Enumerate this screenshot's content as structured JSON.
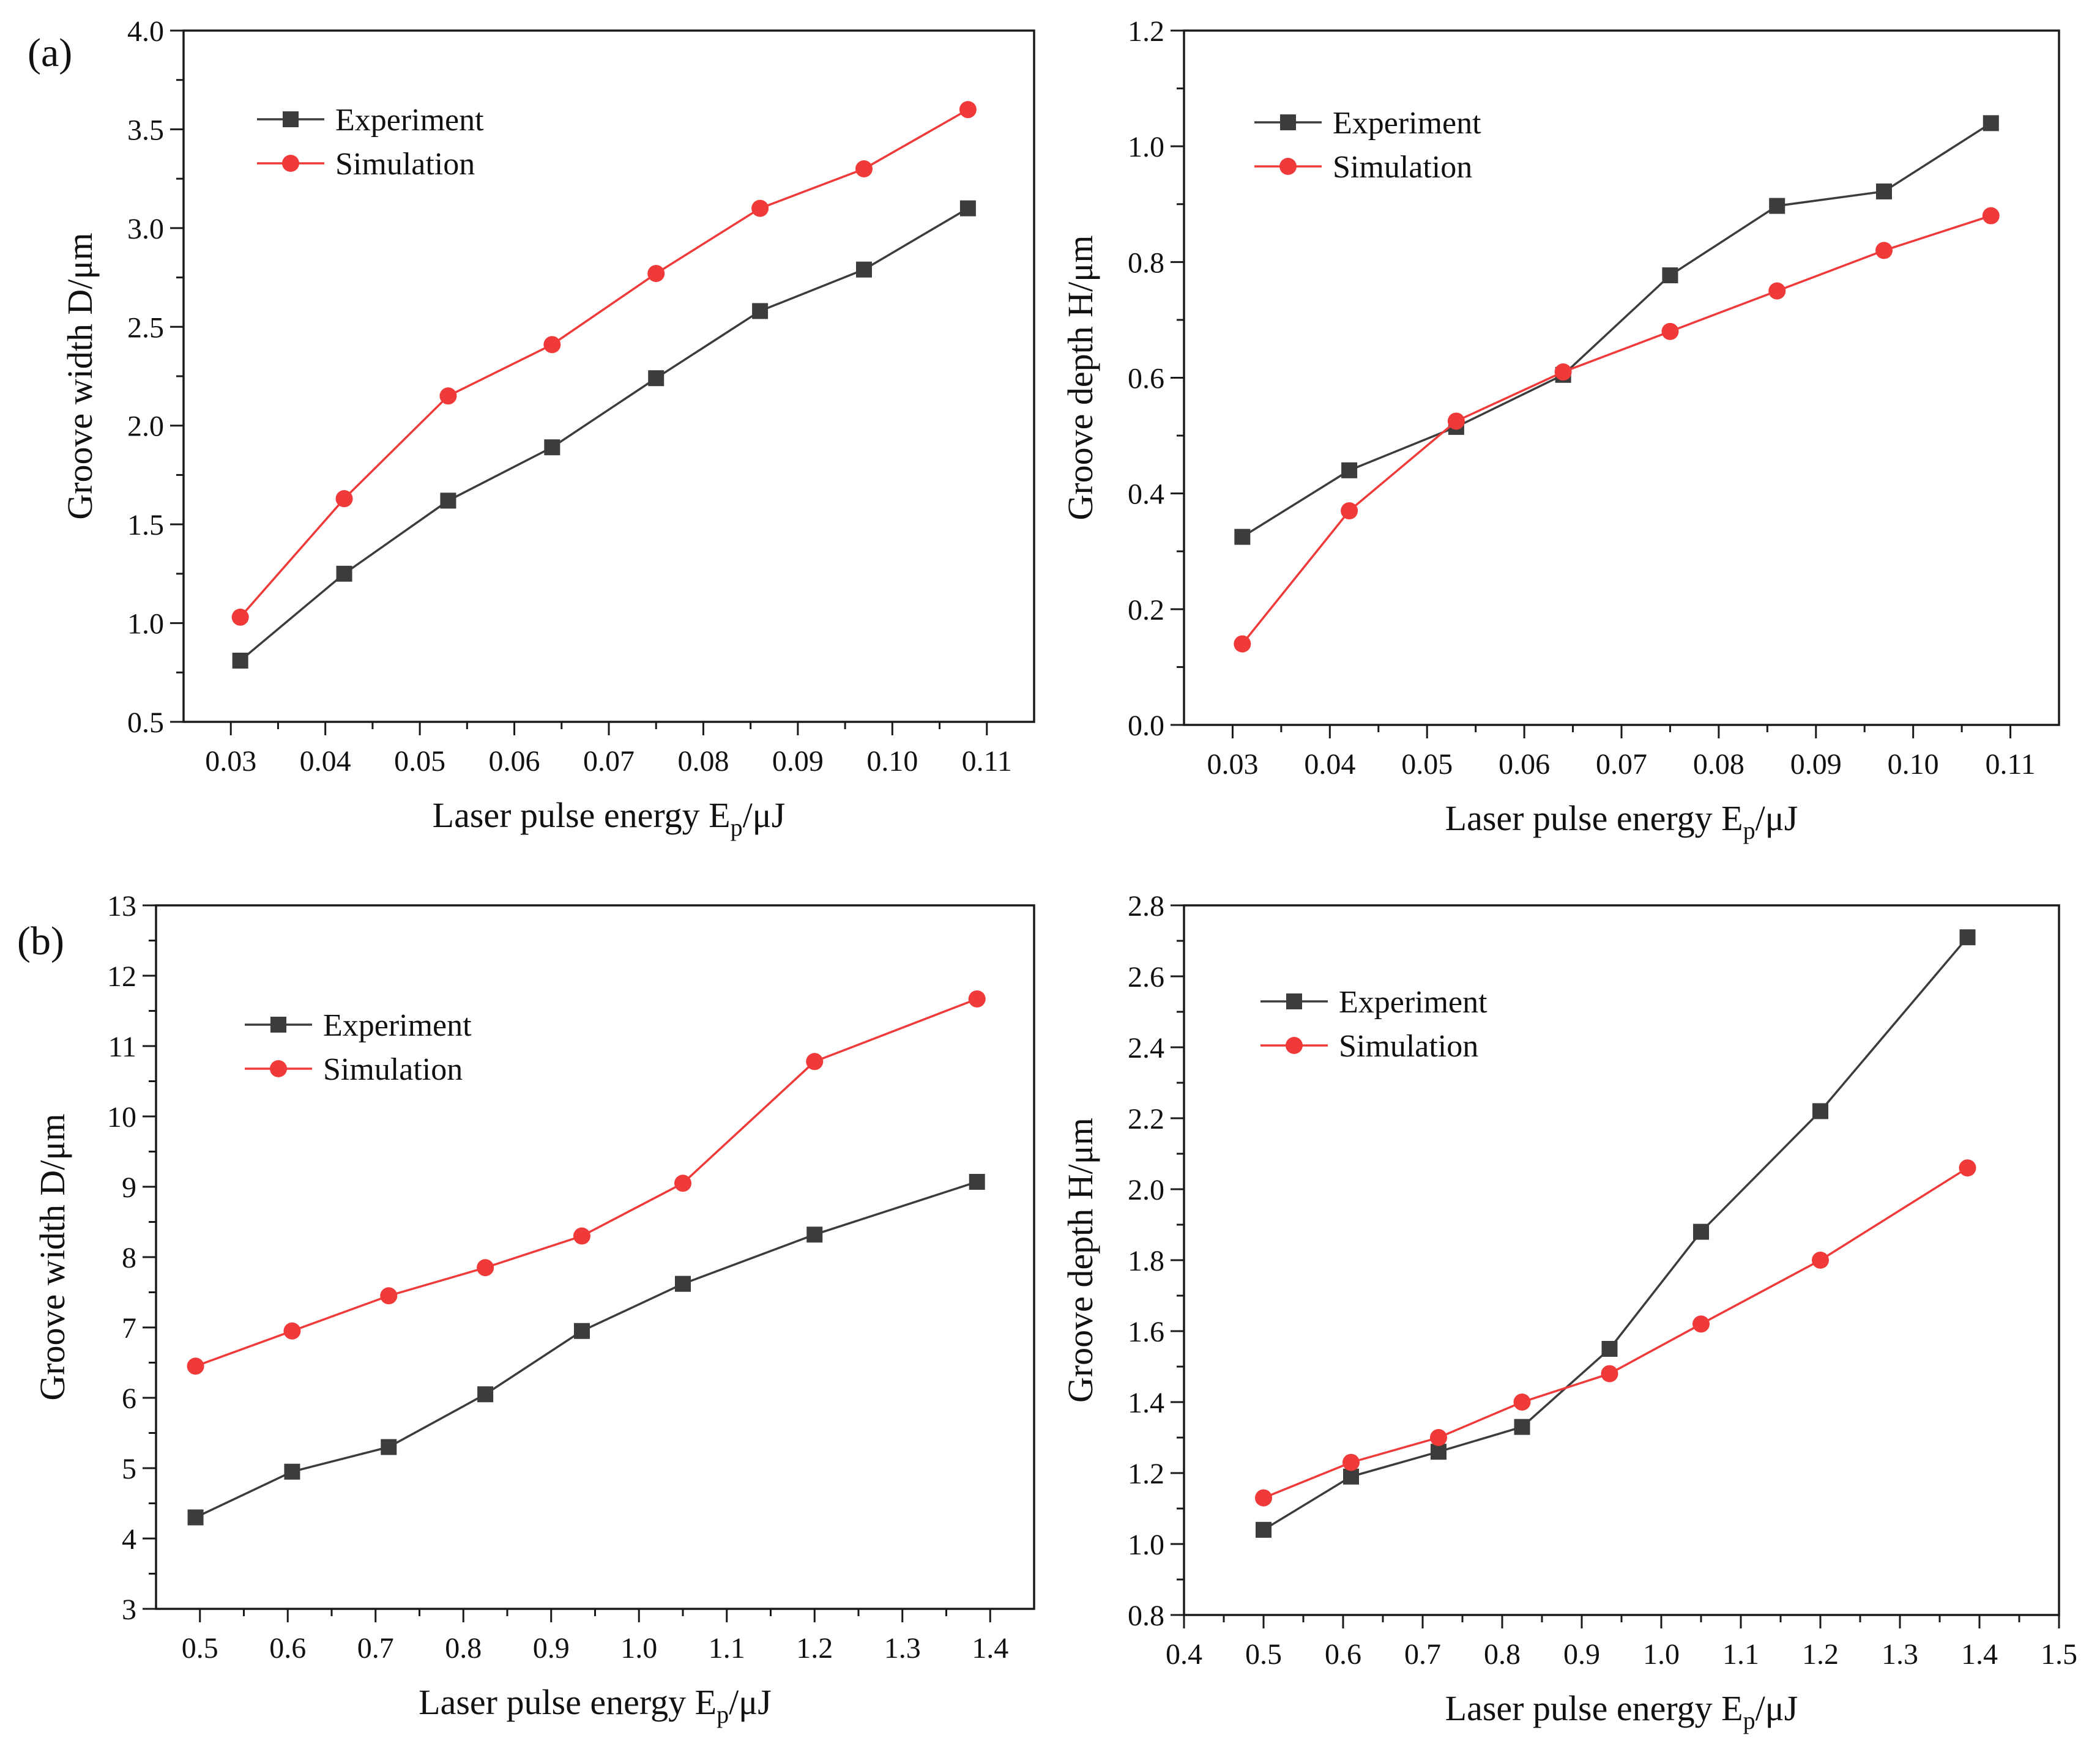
{
  "figure": {
    "panel_labels": [
      "(a)",
      "(b)"
    ]
  },
  "chart_data": [
    {
      "type": "line",
      "panel": "(a)",
      "xlabel": "Laser pulse energy E",
      "xlabel_sub": "p",
      "xlabel_unit": "/μJ",
      "ylabel": "Groove width D/μm",
      "xlim": [
        0.025,
        0.115
      ],
      "ylim": [
        0.5,
        4.0
      ],
      "xticks": [
        "0.03",
        "0.04",
        "0.05",
        "0.06",
        "0.07",
        "0.08",
        "0.09",
        "0.10",
        "0.11"
      ],
      "yticks": [
        "0.5",
        "1.0",
        "1.5",
        "2.0",
        "2.5",
        "3.0",
        "3.5",
        "4.0"
      ],
      "legend_position": "top-left",
      "x": [
        0.031,
        0.042,
        0.053,
        0.064,
        0.075,
        0.086,
        0.097,
        0.108
      ],
      "series": [
        {
          "name": "Experiment",
          "marker": "square",
          "color": "#3c3c3c",
          "values": [
            0.81,
            1.25,
            1.62,
            1.89,
            2.24,
            2.58,
            2.79,
            3.1
          ]
        },
        {
          "name": "Simulation",
          "marker": "circle",
          "color": "#f03a3a",
          "values": [
            1.03,
            1.63,
            2.15,
            2.41,
            2.77,
            3.1,
            3.3,
            3.6
          ]
        }
      ]
    },
    {
      "type": "line",
      "panel": "(a)",
      "xlabel": "Laser pulse energy E",
      "xlabel_sub": "p",
      "xlabel_unit": "/μJ",
      "ylabel": "Groove depth H/μm",
      "xlim": [
        0.025,
        0.115
      ],
      "ylim": [
        0.0,
        1.2
      ],
      "xticks": [
        "0.03",
        "0.04",
        "0.05",
        "0.06",
        "0.07",
        "0.08",
        "0.09",
        "0.10",
        "0.11"
      ],
      "yticks": [
        "0.0",
        "0.2",
        "0.4",
        "0.6",
        "0.8",
        "1.0",
        "1.2"
      ],
      "legend_position": "top-left",
      "x": [
        0.031,
        0.042,
        0.053,
        0.064,
        0.075,
        0.086,
        0.097,
        0.108
      ],
      "series": [
        {
          "name": "Experiment",
          "marker": "square",
          "color": "#3c3c3c",
          "values": [
            0.325,
            0.44,
            0.515,
            0.605,
            0.777,
            0.897,
            0.922,
            1.04
          ]
        },
        {
          "name": "Simulation",
          "marker": "circle",
          "color": "#f03a3a",
          "values": [
            0.14,
            0.37,
            0.525,
            0.61,
            0.68,
            0.75,
            0.82,
            0.88
          ]
        }
      ]
    },
    {
      "type": "line",
      "panel": "(b)",
      "xlabel": "Laser pulse energy E",
      "xlabel_sub": "p",
      "xlabel_unit": "/μJ",
      "ylabel": "Groove width D/μm",
      "xlim": [
        0.45,
        1.45
      ],
      "ylim": [
        3,
        13
      ],
      "xticks": [
        "0.5",
        "0.6",
        "0.7",
        "0.8",
        "0.9",
        "1.0",
        "1.1",
        "1.2",
        "1.3",
        "1.4"
      ],
      "yticks": [
        "3",
        "4",
        "5",
        "6",
        "7",
        "8",
        "9",
        "10",
        "11",
        "12",
        "13"
      ],
      "legend_position": "top-left",
      "x": [
        0.495,
        0.605,
        0.715,
        0.825,
        0.935,
        1.05,
        1.2,
        1.385
      ],
      "series": [
        {
          "name": "Experiment",
          "marker": "square",
          "color": "#3c3c3c",
          "values": [
            4.3,
            4.95,
            5.3,
            6.05,
            6.95,
            7.62,
            8.32,
            9.07
          ]
        },
        {
          "name": "Simulation",
          "marker": "circle",
          "color": "#f03a3a",
          "values": [
            6.45,
            6.95,
            7.45,
            7.85,
            8.3,
            9.05,
            10.78,
            11.67
          ]
        }
      ]
    },
    {
      "type": "line",
      "panel": "(b)",
      "xlabel": "Laser pulse energy E",
      "xlabel_sub": "p",
      "xlabel_unit": "/μJ",
      "ylabel": "Groove depth H/μm",
      "xlim": [
        0.4,
        1.5
      ],
      "ylim": [
        0.8,
        2.8
      ],
      "xticks": [
        "0.4",
        "0.5",
        "0.6",
        "0.7",
        "0.8",
        "0.9",
        "1.0",
        "1.1",
        "1.2",
        "1.3",
        "1.4",
        "1.5"
      ],
      "yticks": [
        "0.8",
        "1.0",
        "1.2",
        "1.4",
        "1.6",
        "1.8",
        "2.0",
        "2.2",
        "2.4",
        "2.6",
        "2.8"
      ],
      "legend_position": "top-left",
      "x": [
        0.5,
        0.61,
        0.72,
        0.825,
        0.935,
        1.05,
        1.2,
        1.385
      ],
      "series": [
        {
          "name": "Experiment",
          "marker": "square",
          "color": "#3c3c3c",
          "values": [
            1.04,
            1.19,
            1.26,
            1.33,
            1.55,
            1.88,
            2.22,
            2.71
          ]
        },
        {
          "name": "Simulation",
          "marker": "circle",
          "color": "#f03a3a",
          "values": [
            1.13,
            1.23,
            1.3,
            1.4,
            1.48,
            1.62,
            1.8,
            2.06
          ]
        }
      ]
    }
  ]
}
